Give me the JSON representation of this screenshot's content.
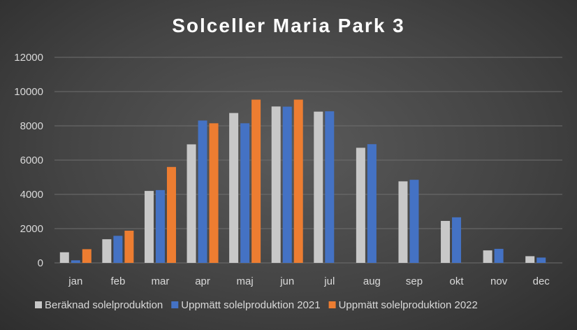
{
  "chart_data": {
    "type": "bar",
    "title": "Solceller Maria Park 3",
    "categories": [
      "jan",
      "feb",
      "mar",
      "apr",
      "maj",
      "jun",
      "jul",
      "aug",
      "sep",
      "okt",
      "nov",
      "dec"
    ],
    "series": [
      {
        "name": "Beräknad solelproduktion",
        "color": "#c8c8c8",
        "values": [
          620,
          1380,
          4200,
          6920,
          8750,
          9130,
          8830,
          6720,
          4760,
          2450,
          730,
          390
        ]
      },
      {
        "name": "Uppmätt solelproduktion 2021",
        "color": "#4472c4",
        "values": [
          150,
          1580,
          4250,
          8310,
          8150,
          9120,
          8850,
          6930,
          4850,
          2660,
          820,
          310
        ]
      },
      {
        "name": "Uppmätt solelproduktion 2022",
        "color": "#ed7d31",
        "values": [
          800,
          1880,
          5600,
          8150,
          9530,
          9530,
          null,
          null,
          null,
          null,
          null,
          null
        ]
      }
    ],
    "yticks": [
      "0",
      "2000",
      "4000",
      "6000",
      "8000",
      "10000",
      "12000"
    ],
    "ylim": [
      0,
      12000
    ],
    "grid": true,
    "legend_position": "bottom"
  }
}
